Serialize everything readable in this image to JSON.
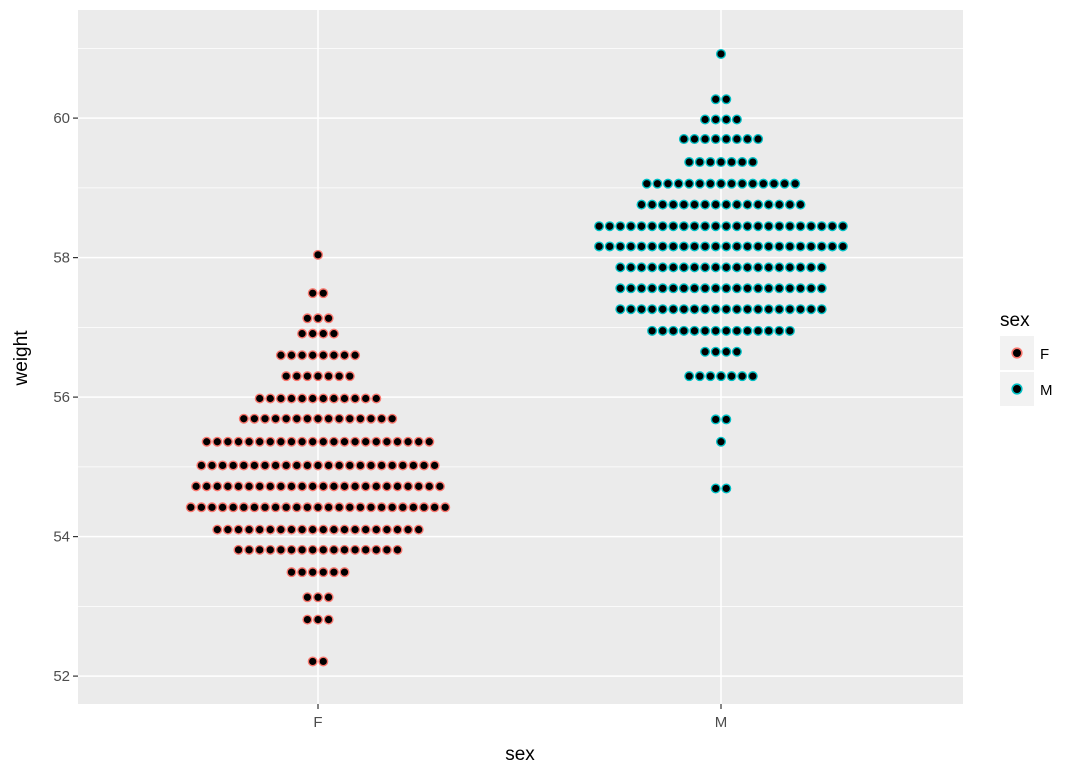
{
  "chart_data": {
    "type": "dotplot",
    "xlabel": "sex",
    "ylabel": "weight",
    "categories": [
      "F",
      "M"
    ],
    "ylim": [
      51.6,
      61.55
    ],
    "y_ticks": [
      52,
      54,
      56,
      58,
      60
    ],
    "y_minor_ticks": [
      53,
      55,
      57,
      59,
      61
    ],
    "grid": true,
    "background": "#ebebeb",
    "fill_color": "#000000",
    "legend": {
      "title": "sex",
      "placement": "right",
      "entries": [
        {
          "label": "F",
          "color": "#f8766d"
        },
        {
          "label": "M",
          "color": "#00bfc4"
        }
      ]
    },
    "series": [
      {
        "name": "F",
        "color": "#f8766d",
        "bins": [
          {
            "y": 58.04,
            "count": 1
          },
          {
            "y": 57.49,
            "count": 2
          },
          {
            "y": 57.13,
            "count": 3
          },
          {
            "y": 56.91,
            "count": 4
          },
          {
            "y": 56.6,
            "count": 8
          },
          {
            "y": 56.3,
            "count": 7
          },
          {
            "y": 55.98,
            "count": 12
          },
          {
            "y": 55.69,
            "count": 15
          },
          {
            "y": 55.36,
            "count": 22
          },
          {
            "y": 55.02,
            "count": 23
          },
          {
            "y": 54.72,
            "count": 24
          },
          {
            "y": 54.42,
            "count": 25
          },
          {
            "y": 54.1,
            "count": 20
          },
          {
            "y": 53.81,
            "count": 16
          },
          {
            "y": 53.49,
            "count": 6
          },
          {
            "y": 53.13,
            "count": 3
          },
          {
            "y": 52.81,
            "count": 3
          },
          {
            "y": 52.21,
            "count": 2
          }
        ]
      },
      {
        "name": "M",
        "color": "#00bfc4",
        "bins": [
          {
            "y": 60.92,
            "count": 1
          },
          {
            "y": 60.27,
            "count": 2
          },
          {
            "y": 59.98,
            "count": 4
          },
          {
            "y": 59.7,
            "count": 8
          },
          {
            "y": 59.37,
            "count": 7
          },
          {
            "y": 59.06,
            "count": 15
          },
          {
            "y": 58.76,
            "count": 16
          },
          {
            "y": 58.45,
            "count": 24
          },
          {
            "y": 58.16,
            "count": 24
          },
          {
            "y": 57.86,
            "count": 20
          },
          {
            "y": 57.56,
            "count": 20
          },
          {
            "y": 57.26,
            "count": 20
          },
          {
            "y": 56.95,
            "count": 14
          },
          {
            "y": 56.65,
            "count": 4
          },
          {
            "y": 56.3,
            "count": 7
          },
          {
            "y": 55.68,
            "count": 2
          },
          {
            "y": 55.36,
            "count": 1
          },
          {
            "y": 54.69,
            "count": 2
          }
        ]
      }
    ]
  }
}
